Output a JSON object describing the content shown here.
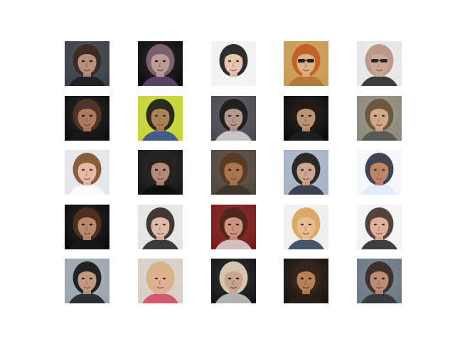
{
  "figure": {
    "rows": 5,
    "cols": 5,
    "samples": [
      {
        "bg": "#3a3f46",
        "skin": "#c99a84",
        "hair": "#3b2a22",
        "accent": "#1a1a1a",
        "glasses": false
      },
      {
        "bg": "#0d0d10",
        "skin": "#d5b0a5",
        "hair": "#8b6b7a",
        "accent": "#6c4f7a",
        "glasses": false
      },
      {
        "bg": "#f2f2f2",
        "skin": "#e8c0a8",
        "hair": "#141414",
        "accent": "#f5f5f5",
        "glasses": false
      },
      {
        "bg": "#c89a55",
        "skin": "#e1b58a",
        "hair": "#c45a1f",
        "accent": "#b07030",
        "glasses": true
      },
      {
        "bg": "#e7e7ea",
        "skin": "#c8a08a",
        "hair": "#b78f7d",
        "accent": "#111111",
        "glasses": true
      },
      {
        "bg": "#0d0d0f",
        "skin": "#c58a6b",
        "hair": "#5a3a2a",
        "accent": "#1a1a1a",
        "glasses": false
      },
      {
        "bg": "#c7d534",
        "skin": "#a87660",
        "hair": "#141414",
        "accent": "#1e3e9e",
        "glasses": false
      },
      {
        "bg": "#4a4a52",
        "skin": "#c3a592",
        "hair": "#1d1a18",
        "accent": "#e6e6e6",
        "glasses": false
      },
      {
        "bg": "#0b0b0b",
        "skin": "#d4a784",
        "hair": "#2a1e16",
        "accent": "#222222",
        "glasses": false
      },
      {
        "bg": "#8d8a7b",
        "skin": "#d9ae8c",
        "hair": "#6a5238",
        "accent": "#4d4d4d",
        "glasses": false
      },
      {
        "bg": "#e4e6ea",
        "skin": "#e3b49a",
        "hair": "#7a4a25",
        "accent": "#ffffff",
        "glasses": false
      },
      {
        "bg": "#161616",
        "skin": "#c89a84",
        "hair": "#2b2420",
        "accent": "#0c0c0c",
        "glasses": false
      },
      {
        "bg": "#4f463d",
        "skin": "#b47e52",
        "hair": "#5c3a24",
        "accent": "#3b2f24",
        "glasses": false
      },
      {
        "bg": "#a7b3c6",
        "skin": "#d3a48a",
        "hair": "#1b1612",
        "accent": "#1f2233",
        "glasses": false
      },
      {
        "bg": "#f5f7fb",
        "skin": "#b77752",
        "hair": "#2b2b3b",
        "accent": "#d9e8ff",
        "glasses": false
      },
      {
        "bg": "#0b0b0b",
        "skin": "#d19b7c",
        "hair": "#5a3420",
        "accent": "#1a1a1a",
        "glasses": false
      },
      {
        "bg": "#e4e4e4",
        "skin": "#ddb59e",
        "hair": "#2a201c",
        "accent": "#0e0e0e",
        "glasses": false
      },
      {
        "bg": "#7a1a1a",
        "skin": "#d8a58a",
        "hair": "#4a2a1f",
        "accent": "#e9e9e9",
        "glasses": false
      },
      {
        "bg": "#f0f0f0",
        "skin": "#e6b888",
        "hair": "#d9a050",
        "accent": "#1b2d4f",
        "glasses": false
      },
      {
        "bg": "#f3f3f3",
        "skin": "#dba58e",
        "hair": "#3e2a22",
        "accent": "#0e0e0e",
        "glasses": false
      },
      {
        "bg": "#9aa7ad",
        "skin": "#c6987c",
        "hair": "#111111",
        "accent": "#0f0f0f",
        "glasses": false
      },
      {
        "bg": "#d8d0c8",
        "skin": "#e4ac8a",
        "hair": "#d8b080",
        "accent": "#d33a5a",
        "glasses": false
      },
      {
        "bg": "#16161a",
        "skin": "#e1b8a0",
        "hair": "#f0e0c4",
        "accent": "#d9d9d9",
        "glasses": false
      },
      {
        "bg": "#1b1410",
        "skin": "#cc905e",
        "hair": "#3a281c",
        "accent": "#2c2018",
        "glasses": false
      },
      {
        "bg": "#6c7888",
        "skin": "#c99072",
        "hair": "#3a2820",
        "accent": "#2a2a2a",
        "glasses": false
      }
    ]
  }
}
